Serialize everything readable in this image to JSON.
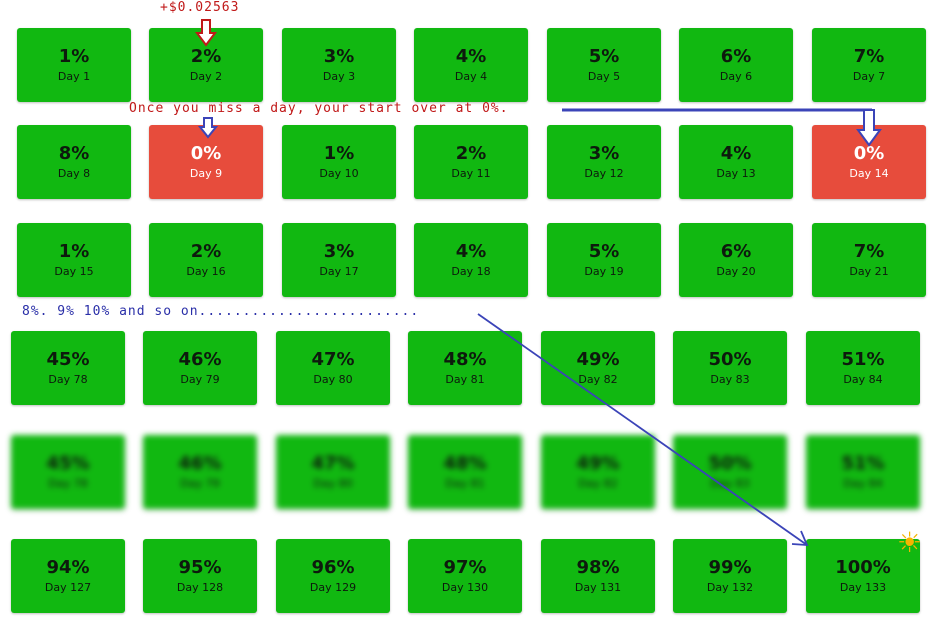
{
  "rows": [
    [
      {
        "pct": "1%",
        "day": "Day 1"
      },
      {
        "pct": "2%",
        "day": "Day 2"
      },
      {
        "pct": "3%",
        "day": "Day 3"
      },
      {
        "pct": "4%",
        "day": "Day 4"
      },
      {
        "pct": "5%",
        "day": "Day 5"
      },
      {
        "pct": "6%",
        "day": "Day 6"
      },
      {
        "pct": "7%",
        "day": "Day 7"
      }
    ],
    [
      {
        "pct": "8%",
        "day": "Day 8"
      },
      {
        "pct": "0%",
        "day": "Day 9",
        "missed": true
      },
      {
        "pct": "1%",
        "day": "Day 10"
      },
      {
        "pct": "2%",
        "day": "Day 11"
      },
      {
        "pct": "3%",
        "day": "Day 12"
      },
      {
        "pct": "4%",
        "day": "Day 13"
      },
      {
        "pct": "0%",
        "day": "Day 14",
        "missed": true
      }
    ],
    [
      {
        "pct": "1%",
        "day": "Day 15"
      },
      {
        "pct": "2%",
        "day": "Day 16"
      },
      {
        "pct": "3%",
        "day": "Day 17"
      },
      {
        "pct": "4%",
        "day": "Day 18"
      },
      {
        "pct": "5%",
        "day": "Day 19"
      },
      {
        "pct": "6%",
        "day": "Day 20"
      },
      {
        "pct": "7%",
        "day": "Day 21"
      }
    ],
    [
      {
        "pct": "45%",
        "day": "Day 78"
      },
      {
        "pct": "46%",
        "day": "Day 79"
      },
      {
        "pct": "47%",
        "day": "Day 80"
      },
      {
        "pct": "48%",
        "day": "Day 81"
      },
      {
        "pct": "49%",
        "day": "Day 82"
      },
      {
        "pct": "50%",
        "day": "Day 83"
      },
      {
        "pct": "51%",
        "day": "Day 84"
      }
    ],
    [
      {
        "pct": "45%",
        "day": "Day 78"
      },
      {
        "pct": "46%",
        "day": "Day 79"
      },
      {
        "pct": "47%",
        "day": "Day 80"
      },
      {
        "pct": "48%",
        "day": "Day 81"
      },
      {
        "pct": "49%",
        "day": "Day 82"
      },
      {
        "pct": "50%",
        "day": "Day 83"
      },
      {
        "pct": "51%",
        "day": "Day 84"
      }
    ],
    [
      {
        "pct": "94%",
        "day": "Day 127"
      },
      {
        "pct": "95%",
        "day": "Day 128"
      },
      {
        "pct": "96%",
        "day": "Day 129"
      },
      {
        "pct": "97%",
        "day": "Day 130"
      },
      {
        "pct": "98%",
        "day": "Day 131"
      },
      {
        "pct": "99%",
        "day": "Day 132"
      },
      {
        "pct": "100%",
        "day": "Day 133"
      }
    ]
  ],
  "blurred_row_index": 4,
  "annotations": {
    "gain": "+$0.02563",
    "reset_note": "Once you miss a day, your start over at 0%.",
    "progress_note": "8%. 9% 10%  and so on........................."
  },
  "colors": {
    "card_green": "#11b811",
    "card_red": "#e74c3c",
    "annotation_red": "#c01818",
    "annotation_blue": "#2a2fa8",
    "arrow_blue": "#3b44b8"
  },
  "icons": {
    "sun": "sun-icon"
  }
}
